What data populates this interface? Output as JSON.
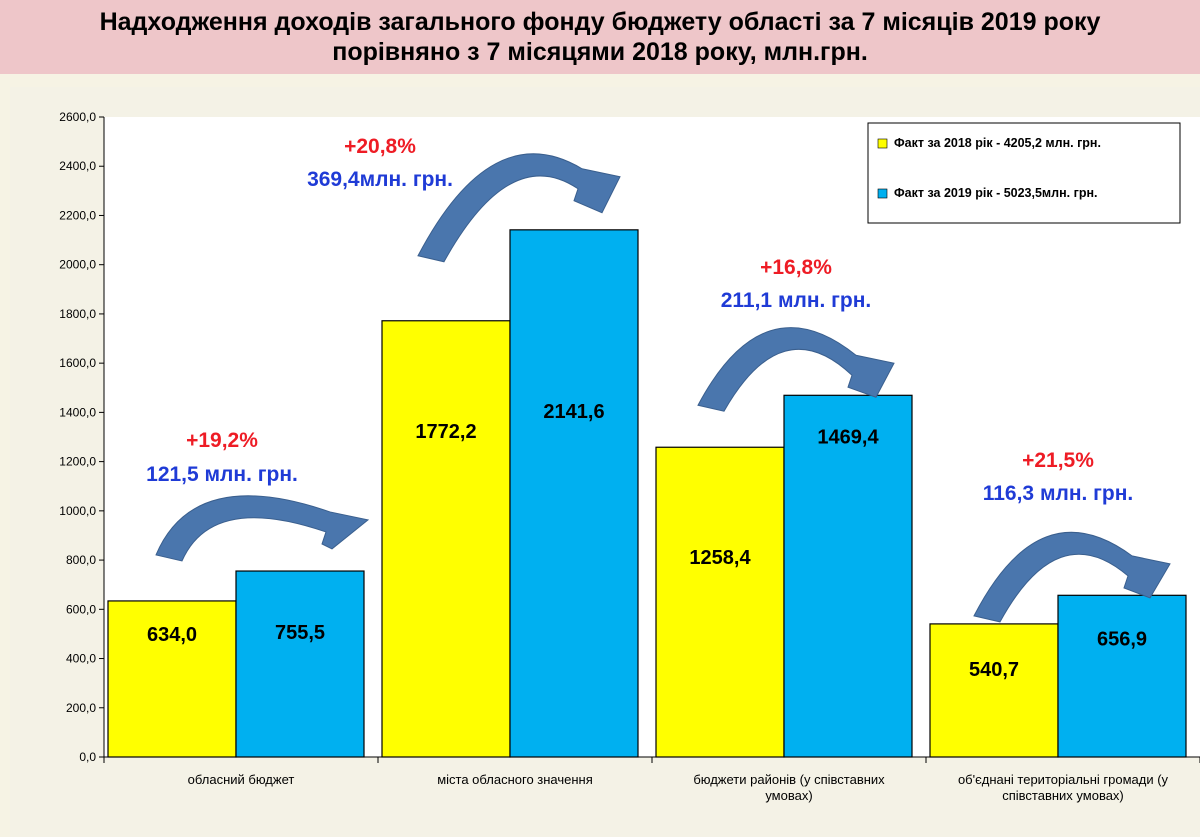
{
  "title": {
    "line1": "Надходження доходів загального фонду бюджету області за 7 місяців 2019 року",
    "line2": "порівняно з 7 місяцями 2018 року,  млн.грн."
  },
  "colors": {
    "series_2018": "#ffff00",
    "series_2019": "#00b0f0",
    "percent_text": "#ee1c25",
    "amount_text": "#1f3bd6",
    "arrow_fill": "#4a76ad",
    "title_band": "#eec6c9"
  },
  "chart_data": {
    "type": "bar",
    "categories": [
      [
        "обласний бюджет"
      ],
      [
        "міста обласного значення"
      ],
      [
        "бюджети районів (у співставних",
        "умовах)"
      ],
      [
        "об'єднані територіальні громади (у",
        "співставних умовах)"
      ]
    ],
    "series": [
      {
        "name": "Факт за 2018  рік - 4205,2  млн. грн.",
        "values": [
          634.0,
          1772.2,
          1258.4,
          540.7
        ],
        "labels": [
          "634,0",
          "1772,2",
          "1258,4",
          "540,7"
        ]
      },
      {
        "name": "Факт за 2019  рік - 5023,5млн.  грн.",
        "values": [
          755.5,
          2141.6,
          1469.4,
          656.9
        ],
        "labels": [
          "755,5",
          "2141,6",
          "1469,4",
          "656,9"
        ]
      }
    ],
    "ylim": [
      0,
      2600
    ],
    "y_ticks": [
      "0,0",
      "200,0",
      "400,0",
      "600,0",
      "800,0",
      "1000,0",
      "1200,0",
      "1400,0",
      "1600,0",
      "1800,0",
      "2000,0",
      "2200,0",
      "2400,0",
      "2600,0"
    ],
    "annotations": [
      {
        "percent": "+19,2%",
        "amount": "121,5 млн. грн."
      },
      {
        "percent": "+20,8%",
        "amount": "369,4млн. грн."
      },
      {
        "percent": "+16,8%",
        "amount": "211,1 млн. грн."
      },
      {
        "percent": "+21,5%",
        "amount": "116,3 млн. грн."
      }
    ],
    "legend_position": "top-right",
    "grid": false
  }
}
